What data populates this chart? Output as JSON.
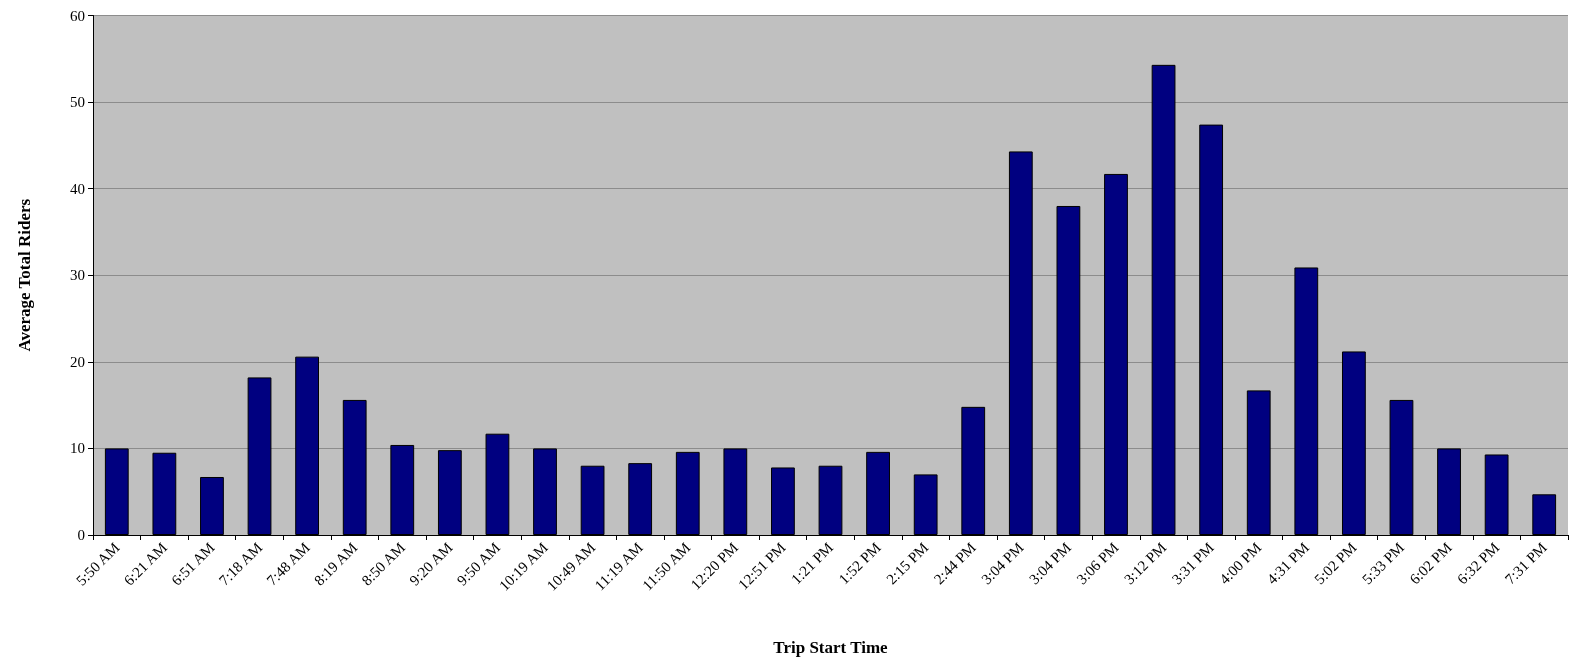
{
  "chart_data": {
    "type": "bar",
    "xlabel": "Trip Start Time",
    "ylabel": "Average Total Riders",
    "categories": [
      "5:50 AM",
      "6:21 AM",
      "6:51 AM",
      "7:18 AM",
      "7:48 AM",
      "8:19 AM",
      "8:50 AM",
      "9:20 AM",
      "9:50 AM",
      "10:19 AM",
      "10:49 AM",
      "11:19 AM",
      "11:50 AM",
      "12:20 PM",
      "12:51 PM",
      "1:21 PM",
      "1:52 PM",
      "2:15 PM",
      "2:44 PM",
      "3:04 PM",
      "3:04 PM",
      "3:06 PM",
      "3:12 PM",
      "3:31 PM",
      "4:00 PM",
      "4:31 PM",
      "5:02 PM",
      "5:33 PM",
      "6:02 PM",
      "6:32 PM",
      "7:31 PM"
    ],
    "values": [
      10.0,
      9.5,
      6.7,
      18.2,
      20.6,
      15.6,
      10.4,
      9.8,
      11.7,
      10.0,
      8.0,
      8.3,
      9.6,
      10.0,
      7.8,
      8.0,
      9.6,
      7.0,
      14.8,
      44.3,
      38.0,
      41.7,
      54.3,
      47.4,
      16.7,
      30.9,
      21.2,
      15.6,
      10.0,
      9.3,
      4.7
    ],
    "color": "#000080",
    "ylim": [
      0,
      60
    ],
    "yticks": [
      0,
      10,
      20,
      30,
      40,
      50,
      60
    ],
    "grid": "y"
  }
}
